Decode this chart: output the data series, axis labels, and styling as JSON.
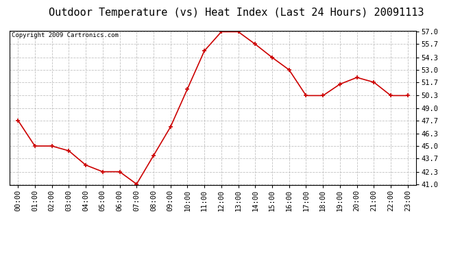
{
  "title": "Outdoor Temperature (vs) Heat Index (Last 24 Hours) 20091113",
  "copyright": "Copyright 2009 Cartronics.com",
  "x_labels": [
    "00:00",
    "01:00",
    "02:00",
    "03:00",
    "04:00",
    "05:00",
    "06:00",
    "07:00",
    "08:00",
    "09:00",
    "10:00",
    "11:00",
    "12:00",
    "13:00",
    "14:00",
    "15:00",
    "16:00",
    "17:00",
    "18:00",
    "19:00",
    "20:00",
    "21:00",
    "22:00",
    "23:00"
  ],
  "y_values": [
    47.7,
    45.0,
    45.0,
    44.5,
    43.0,
    42.3,
    42.3,
    41.0,
    44.0,
    47.0,
    51.0,
    55.0,
    57.0,
    57.0,
    55.7,
    54.3,
    53.0,
    50.3,
    50.3,
    51.5,
    52.2,
    51.7,
    50.3,
    50.3
  ],
  "y_ticks": [
    41.0,
    42.3,
    43.7,
    45.0,
    46.3,
    47.7,
    49.0,
    50.3,
    51.7,
    53.0,
    54.3,
    55.7,
    57.0
  ],
  "y_min": 41.0,
  "y_max": 57.0,
  "line_color": "#cc0000",
  "marker_color": "#cc0000",
  "bg_color": "#ffffff",
  "grid_color": "#bbbbbb",
  "title_fontsize": 11,
  "copyright_fontsize": 6.5,
  "tick_fontsize": 7.5
}
